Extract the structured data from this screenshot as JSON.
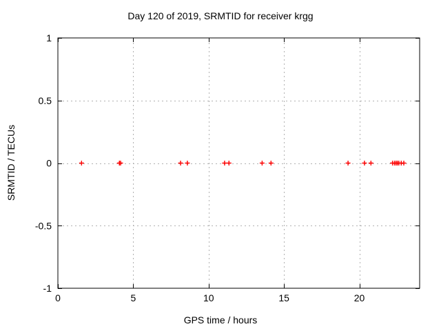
{
  "chart_data": {
    "type": "scatter",
    "title": "Day 120 of 2019, SRMTID for receiver krgg",
    "xlabel": "GPS time / hours",
    "ylabel": "SRMTID / TECUs",
    "xlim": [
      0,
      24
    ],
    "ylim": [
      -1,
      1
    ],
    "xticks": [
      0,
      5,
      10,
      15,
      20
    ],
    "xtick_labels": [
      "0",
      "5",
      "10",
      "15",
      "20"
    ],
    "yticks": [
      -1,
      -0.5,
      0,
      0.5,
      1
    ],
    "ytick_labels": [
      "-1",
      "-0.5",
      "0",
      "0.5",
      "1"
    ],
    "grid": true,
    "legend": "none",
    "series": [
      {
        "name": "SRMTID",
        "marker": "plus",
        "color": "#ff0000",
        "x": [
          1.57,
          4.08,
          4.16,
          8.14,
          8.59,
          11.06,
          11.35,
          13.55,
          14.14,
          19.25,
          20.34,
          20.77,
          22.2,
          22.33,
          22.43,
          22.52,
          22.62,
          22.78,
          22.95
        ],
        "y": [
          0,
          0,
          0,
          0,
          0,
          0,
          0,
          0,
          0,
          0,
          0,
          0,
          0,
          0,
          0,
          0,
          0,
          0,
          0
        ]
      }
    ],
    "colors": {
      "marker": "#ff0000",
      "grid": "#b0b0b0",
      "axis": "#000000",
      "background": "#ffffff",
      "text": "#000000"
    }
  }
}
